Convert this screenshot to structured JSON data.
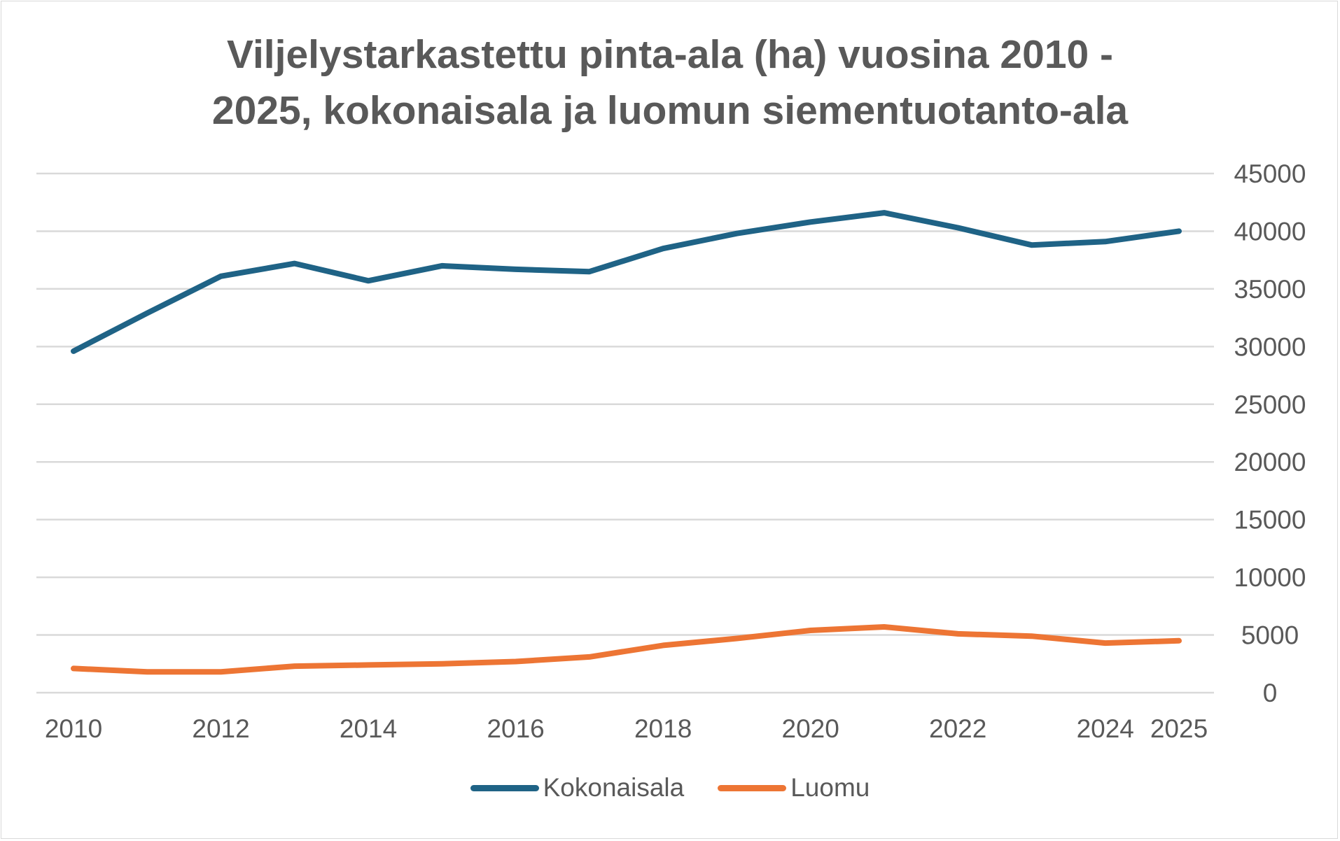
{
  "chart_data": {
    "type": "line",
    "title_lines": [
      "Viljelystarkastettu pinta-ala (ha) vuosina 2010 -",
      "2025, kokonaisala ja luomun siementuotanto-ala"
    ],
    "x": [
      2010,
      2011,
      2012,
      2013,
      2014,
      2015,
      2016,
      2017,
      2018,
      2019,
      2020,
      2021,
      2022,
      2023,
      2024,
      2025
    ],
    "x_tick_labels": [
      "2010",
      "2012",
      "2014",
      "2016",
      "2018",
      "2020",
      "2022",
      "2024",
      "2025"
    ],
    "y_tick_labels": [
      "45000",
      "40000",
      "35000",
      "30000",
      "25000",
      "20000",
      "15000",
      "10000",
      "5000",
      "0"
    ],
    "ylim": [
      0,
      45000
    ],
    "y_axis_side": "right",
    "grid": true,
    "legend_position": "bottom",
    "series": [
      {
        "name": "Kokonaisala",
        "color": "#1f6386",
        "values": [
          29600,
          32900,
          36100,
          37200,
          35700,
          37000,
          36700,
          36500,
          38500,
          39800,
          40800,
          41600,
          40300,
          38800,
          39100,
          40000
        ]
      },
      {
        "name": "Luomu",
        "color": "#ed7534",
        "values": [
          2100,
          1800,
          1800,
          2300,
          2400,
          2500,
          2700,
          3100,
          4100,
          4700,
          5400,
          5700,
          5100,
          4900,
          4300,
          4500
        ]
      }
    ],
    "xlabel": "",
    "ylabel": ""
  }
}
